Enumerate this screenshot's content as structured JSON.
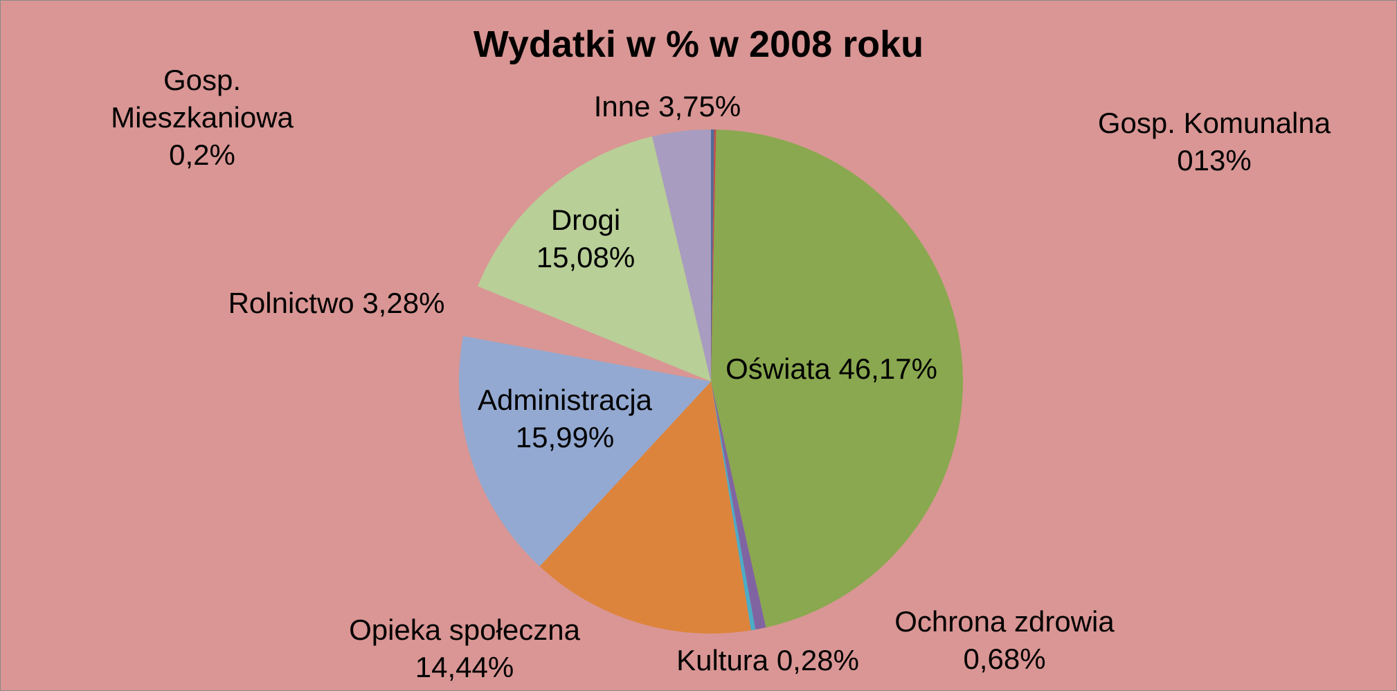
{
  "chart_data": {
    "type": "pie",
    "title": "Wydatki w % w 2008 roku",
    "categories": [
      "Gosp. Mieszkaniowa",
      "Gosp. Komunalna",
      "Oświata",
      "Ochrona zdrowia",
      "Kultura",
      "Opieka społeczna",
      "Administracja",
      "Rolnictwo",
      "Drogi",
      "Inne"
    ],
    "values": [
      0.2,
      0.13,
      46.17,
      0.68,
      0.28,
      14.44,
      15.99,
      3.28,
      15.08,
      3.75
    ],
    "value_labels": [
      "0,2%",
      "013%",
      "46,17%",
      "0,68%",
      "0,28%",
      "14,44%",
      "15,99%",
      "3,28%",
      "15,08%",
      "3,75%"
    ],
    "colors": [
      "#4f6b99",
      "#c0504d",
      "#8aa84f",
      "#8064a2",
      "#4bacc6",
      "#dd843c",
      "#93a9d1",
      "#d99694",
      "#b8cf97",
      "#a89cc0"
    ]
  }
}
